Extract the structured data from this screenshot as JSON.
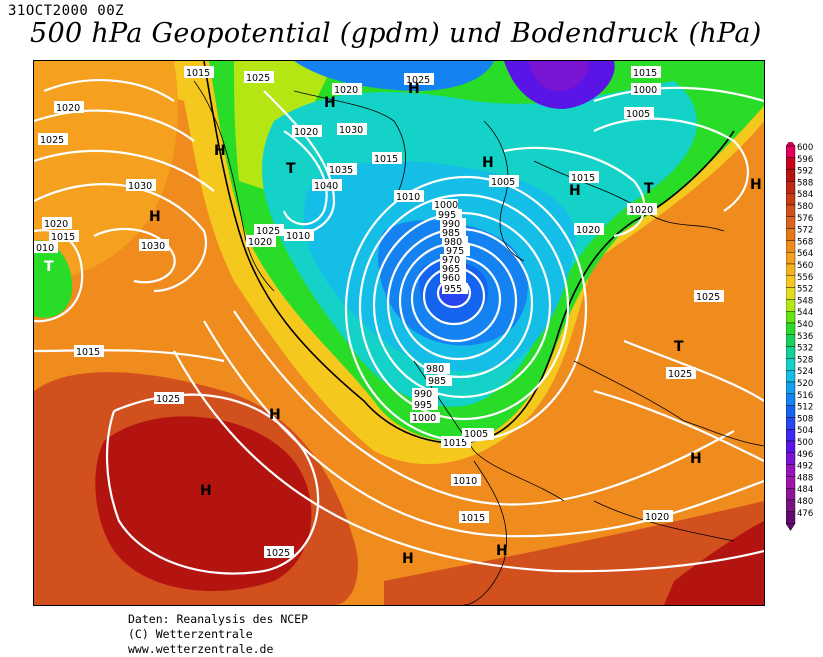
{
  "header": {
    "date": "31OCT2000 00Z",
    "title": "500 hPa Geopotential (gpdm) und Bodendruck (hPa)"
  },
  "footer": {
    "line1": "Daten: Reanalysis des NCEP",
    "line2": "(C) Wetterzentrale",
    "line3": "www.wetterzentrale.de"
  },
  "legend": {
    "levels": [
      "600",
      "596",
      "592",
      "588",
      "584",
      "580",
      "576",
      "572",
      "568",
      "564",
      "560",
      "556",
      "552",
      "548",
      "544",
      "540",
      "536",
      "532",
      "528",
      "524",
      "520",
      "516",
      "512",
      "508",
      "504",
      "500",
      "496",
      "492",
      "488",
      "484",
      "480",
      "476"
    ],
    "colors": [
      "#e0005a",
      "#c80019",
      "#b4140f",
      "#be2814",
      "#c83c14",
      "#d2501e",
      "#dc641e",
      "#e67819",
      "#f08c1e",
      "#f5a01e",
      "#f5b41e",
      "#f5c81e",
      "#e6dc1e",
      "#b4e614",
      "#64e614",
      "#28dc28",
      "#14d25a",
      "#14d296",
      "#14d2c8",
      "#14bee6",
      "#14a0f0",
      "#1482f0",
      "#1464f0",
      "#2846f0",
      "#3c28f0",
      "#5a14e6",
      "#7814d2",
      "#9614be",
      "#a014aa",
      "#8c1496",
      "#781482",
      "#640a6e"
    ]
  },
  "map_labels": {
    "isobars": [
      "1015",
      "1025",
      "1020",
      "1020",
      "1025",
      "1030",
      "1035",
      "1040",
      "1015",
      "1025",
      "1020",
      "1010",
      "1030",
      "1030",
      "1020",
      "1015",
      "010",
      "1020",
      "1025",
      "1015",
      "1000",
      "1005",
      "1010",
      "1005",
      "1020",
      "1015",
      "1020",
      "1015",
      "1005",
      "1000",
      "995",
      "990",
      "985",
      "980",
      "975",
      "970",
      "965",
      "960",
      "955",
      "980",
      "985",
      "990",
      "995",
      "1000",
      "1005",
      "1010",
      "1015",
      "1020",
      "1025",
      "1025",
      "1025",
      "1015",
      "1025"
    ],
    "pressure_centers": [
      "H",
      "H",
      "H",
      "H",
      "H",
      "H",
      "H",
      "H",
      "H",
      "H",
      "H",
      "H",
      "T",
      "T",
      "T",
      "T"
    ]
  }
}
